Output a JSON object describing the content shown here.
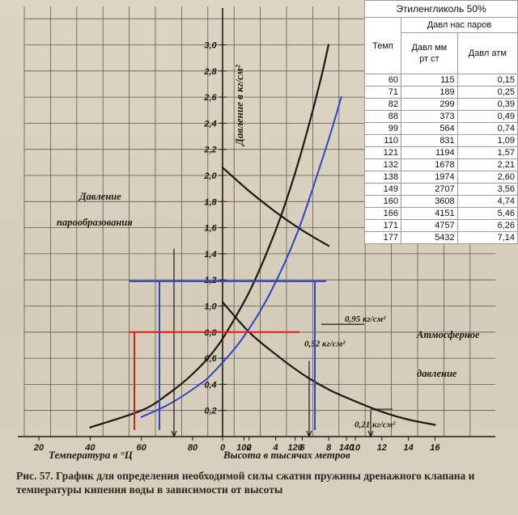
{
  "chart_data": {
    "type": "line",
    "axes": {
      "temperature": {
        "label": "Температура в °Ц",
        "ticks": [
          "20",
          "40",
          "60",
          "80",
          "100",
          "120",
          "140"
        ],
        "range": [
          20,
          140
        ]
      },
      "height": {
        "label": "Высота в тысячах метров",
        "ticks": [
          "0",
          "2",
          "4",
          "6",
          "8",
          "10",
          "12",
          "14",
          "16"
        ],
        "range": [
          0,
          16
        ]
      },
      "pressure": {
        "label": "Давление в кг/см²",
        "ticks": [
          "0,2",
          "0,4",
          "0,6",
          "0,8",
          "1,0",
          "1,2",
          "1,4",
          "1,6",
          "1,8",
          "2,0",
          "2,2",
          "2,4",
          "2,6",
          "2,8",
          "3,0"
        ],
        "range": [
          0,
          3.0
        ]
      }
    },
    "series": [
      {
        "name": "Давление парообразования",
        "axis": "temperature",
        "color": "#1c1915",
        "points": [
          [
            40,
            0.07
          ],
          [
            60,
            0.2
          ],
          [
            70,
            0.32
          ],
          [
            80,
            0.48
          ],
          [
            90,
            0.7
          ],
          [
            100,
            1.03
          ],
          [
            105,
            1.23
          ],
          [
            110,
            1.46
          ],
          [
            115,
            1.72
          ],
          [
            120,
            2.02
          ],
          [
            125,
            2.36
          ],
          [
            130,
            2.74
          ],
          [
            133,
            3.0
          ]
        ]
      },
      {
        "name": "Атмосферное давление",
        "axis": "height",
        "color": "#1c1915",
        "points": [
          [
            0,
            1.03
          ],
          [
            2,
            0.8
          ],
          [
            4,
            0.63
          ],
          [
            6,
            0.48
          ],
          [
            8,
            0.36
          ],
          [
            10,
            0.27
          ],
          [
            12,
            0.19
          ],
          [
            14,
            0.13
          ],
          [
            16,
            0.09
          ]
        ]
      },
      {
        "name": "",
        "axis": "height",
        "color": "#1c1915",
        "points": [
          [
            0,
            2.06
          ],
          [
            2,
            1.88
          ],
          [
            4,
            1.72
          ],
          [
            6,
            1.58
          ],
          [
            8,
            1.46
          ]
        ]
      },
      {
        "name": "",
        "axis": "temperature",
        "color": "#2e45c9",
        "points": [
          [
            60,
            0.15
          ],
          [
            71,
            0.25
          ],
          [
            82,
            0.39
          ],
          [
            88,
            0.49
          ],
          [
            99,
            0.74
          ],
          [
            110,
            1.09
          ],
          [
            121,
            1.57
          ],
          [
            132,
            2.21
          ],
          [
            138,
            2.6
          ]
        ]
      }
    ],
    "annotations": [
      {
        "text": "0,95 кг/см²",
        "color": "#1c1915"
      },
      {
        "text": "0,52 кг/см²",
        "color": "#1c1915"
      },
      {
        "text": "0,21 кг/см²",
        "color": "#1c1915"
      }
    ],
    "grid": true,
    "colors": {
      "paper": "#d8d0bf",
      "ink": "#1c1915",
      "blue_overlay": "#2e45c9",
      "red_overlay": "#e01b1b"
    }
  },
  "caption": {
    "number": "Рис. 57.",
    "text": "График для определения необходимой силы сжатия пружины дренажного клапана и температуры кипения воды в зависимости от высоты"
  },
  "table": {
    "title": "Этиленгликоль 50%",
    "group_header": "Давл нас паров",
    "col_temp": "Темп",
    "col_mm_line1": "Давл мм",
    "col_mm_line2": "рт ст",
    "col_atm": "Давл атм",
    "rows": [
      [
        "60",
        "115",
        "0,15"
      ],
      [
        "71",
        "189",
        "0,25"
      ],
      [
        "82",
        "299",
        "0,39"
      ],
      [
        "88",
        "373",
        "0,49"
      ],
      [
        "99",
        "564",
        "0,74"
      ],
      [
        "110",
        "831",
        "1,09"
      ],
      [
        "121",
        "1194",
        "1,57"
      ],
      [
        "132",
        "1678",
        "2,21"
      ],
      [
        "138",
        "1974",
        "2,60"
      ],
      [
        "149",
        "2707",
        "3,56"
      ],
      [
        "160",
        "3608",
        "4,74"
      ],
      [
        "166",
        "4151",
        "5,46"
      ],
      [
        "171",
        "4757",
        "6,26"
      ],
      [
        "177",
        "5432",
        "7,14"
      ]
    ]
  }
}
